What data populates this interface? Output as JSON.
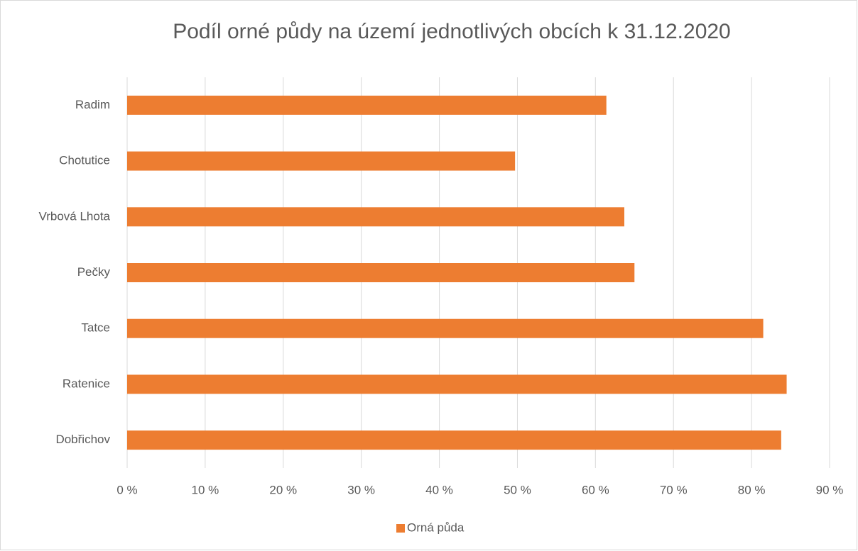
{
  "chart_data": {
    "type": "barh",
    "title": "Podíl orné půdy na území jednotlivých obcích k 31.12.2020",
    "categories": [
      "Radim",
      "Chotutice",
      "Vrbová Lhota",
      "Pečky",
      "Tatce",
      "Ratenice",
      "Dobřichov"
    ],
    "series": [
      {
        "name": "Orná půda",
        "color": "#ed7d31",
        "values": [
          61.4,
          49.7,
          63.7,
          65.0,
          81.5,
          84.5,
          83.8
        ]
      }
    ],
    "xlim": [
      0,
      90
    ],
    "xticks": [
      {
        "value": 0,
        "label": "0 %"
      },
      {
        "value": 10,
        "label": "10 %"
      },
      {
        "value": 20,
        "label": "20 %"
      },
      {
        "value": 30,
        "label": "30 %"
      },
      {
        "value": 40,
        "label": "40 %"
      },
      {
        "value": 50,
        "label": "50 %"
      },
      {
        "value": 60,
        "label": "60 %"
      },
      {
        "value": 70,
        "label": "70 %"
      },
      {
        "value": 80,
        "label": "80 %"
      },
      {
        "value": 90,
        "label": "90 %"
      }
    ],
    "grid": true,
    "legend": "bottom"
  }
}
